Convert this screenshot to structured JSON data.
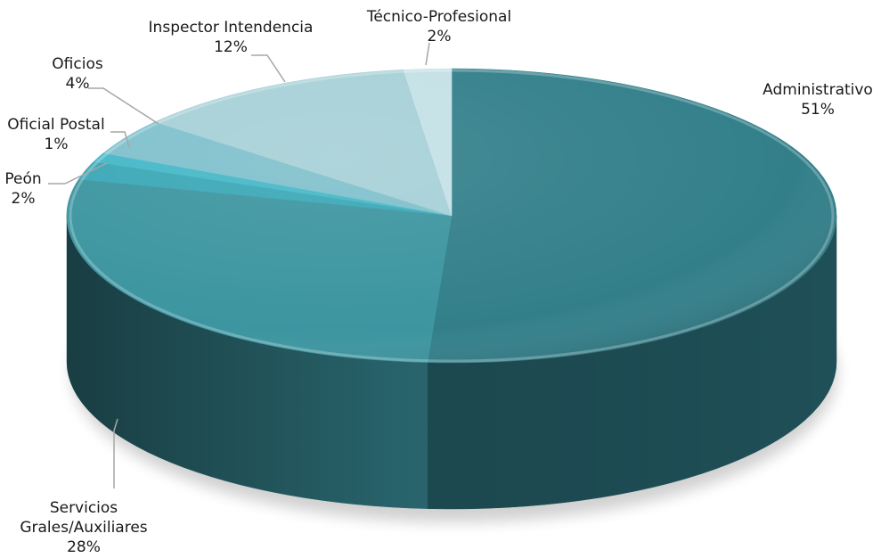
{
  "chart_data": {
    "type": "pie",
    "title": "",
    "style": "3d",
    "slices": [
      {
        "label": "Administrativo",
        "value": 51,
        "value_label": "51%",
        "color": "#327f8a",
        "side": "#1f4f57"
      },
      {
        "label": "Servicios Grales/Auxiliares",
        "value": 28,
        "value_label": "28%",
        "color": "#3c95a0",
        "side": "#2d6f78"
      },
      {
        "label": "Peón",
        "value": 2,
        "value_label": "2%",
        "color": "#3aa7b6",
        "side": "#2c7e89"
      },
      {
        "label": "Oficial Postal",
        "value": 1,
        "value_label": "1%",
        "color": "#45b7c7",
        "side": "#338a96"
      },
      {
        "label": "Oficios",
        "value": 4,
        "value_label": "4%",
        "color": "#7fc0cc",
        "side": "#5f939c"
      },
      {
        "label": "Inspector Intendencia",
        "value": 12,
        "value_label": "12%",
        "color": "#a6d0d7",
        "side": "#7fa3a9"
      },
      {
        "label": "Técnico-Profesional",
        "value": 2,
        "value_label": "2%",
        "color": "#c4e1e6",
        "side": "#98b3b7"
      }
    ]
  }
}
